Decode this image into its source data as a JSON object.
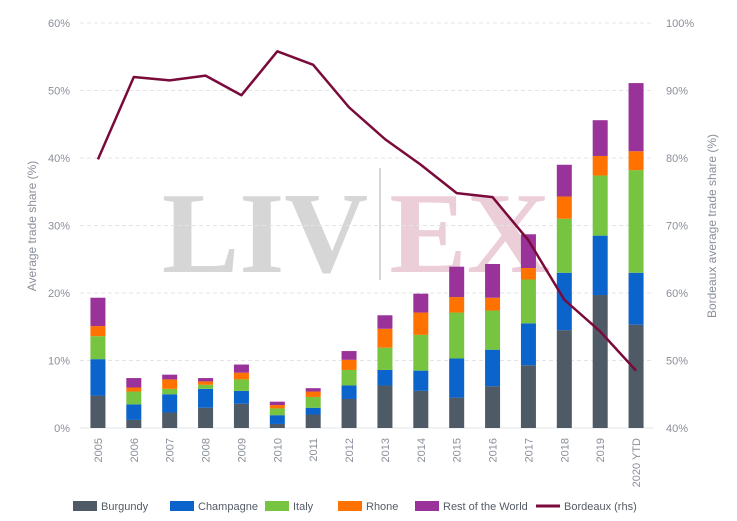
{
  "chart_data": {
    "type": "bar",
    "stacked": true,
    "watermark": [
      "LIV",
      "EX"
    ],
    "categories": [
      "2005",
      "2006",
      "2007",
      "2008",
      "2009",
      "2010",
      "2011",
      "2012",
      "2013",
      "2014",
      "2015",
      "2016",
      "2017",
      "2018",
      "2019",
      "2020 YTD"
    ],
    "ylabel": "Average trade share (%)",
    "y2label": "Bordeaux average trade share (%)",
    "ylim": [
      0,
      60
    ],
    "y2lim": [
      40,
      100
    ],
    "yticks": [
      "0%",
      "10%",
      "20%",
      "30%",
      "40%",
      "50%",
      "60%"
    ],
    "y2ticks": [
      "40%",
      "50%",
      "60%",
      "70%",
      "80%",
      "90%",
      "100%"
    ],
    "grid": true,
    "legend_position": "bottom",
    "series": [
      {
        "name": "Burgundy",
        "color": "#4e5a65",
        "values": [
          4.8,
          1.2,
          2.3,
          3.0,
          3.6,
          0.6,
          2.0,
          4.3,
          6.3,
          5.5,
          4.5,
          6.2,
          9.3,
          14.5,
          19.7,
          15.3
        ]
      },
      {
        "name": "Champagne",
        "color": "#0b63cc",
        "values": [
          5.4,
          2.3,
          2.7,
          2.8,
          1.9,
          1.3,
          1.0,
          2.0,
          2.3,
          3.0,
          5.8,
          5.4,
          6.2,
          8.5,
          8.8,
          7.7
        ]
      },
      {
        "name": "Italy",
        "color": "#76c440",
        "values": [
          3.4,
          1.9,
          0.8,
          0.6,
          1.7,
          1.0,
          1.6,
          2.3,
          3.3,
          5.3,
          6.8,
          5.8,
          6.5,
          8.0,
          8.9,
          15.2
        ]
      },
      {
        "name": "Rhone",
        "color": "#ff7200",
        "values": [
          1.5,
          0.6,
          1.4,
          0.5,
          1.0,
          0.5,
          0.8,
          1.5,
          2.8,
          3.3,
          2.3,
          1.9,
          1.7,
          3.3,
          2.9,
          2.8
        ]
      },
      {
        "name": "Rest of the World",
        "color": "#993399",
        "values": [
          4.2,
          1.4,
          0.7,
          0.5,
          1.2,
          0.5,
          0.5,
          1.3,
          2.0,
          2.8,
          4.5,
          5.0,
          5.0,
          4.7,
          5.3,
          10.1
        ]
      },
      {
        "name": "Bordeaux (rhs)",
        "color": "#7a0a3a",
        "type": "line",
        "axis": "right",
        "values": [
          79.8,
          92.0,
          91.5,
          92.2,
          89.3,
          95.8,
          93.8,
          87.5,
          82.8,
          79.0,
          74.8,
          74.2,
          67.8,
          59.0,
          54.3,
          48.5
        ]
      }
    ]
  }
}
